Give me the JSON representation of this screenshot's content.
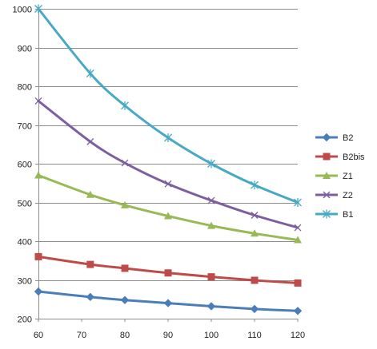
{
  "chart_data": {
    "type": "line",
    "title": "",
    "xlabel": "",
    "ylabel": "",
    "x": [
      60,
      72,
      80,
      90,
      100,
      110,
      120
    ],
    "xlim": [
      60,
      120
    ],
    "x_ticks": [
      60,
      70,
      80,
      90,
      100,
      110,
      120
    ],
    "ylim": [
      200,
      1000
    ],
    "y_ticks": [
      200,
      300,
      400,
      500,
      600,
      700,
      800,
      900,
      1000
    ],
    "grid": "horizontal",
    "legend_position": "right",
    "smooth": true,
    "series": [
      {
        "name": "B2",
        "color": "#4a7ebb",
        "marker": "diamond",
        "values": [
          270,
          256,
          248,
          240,
          232,
          225,
          220
        ]
      },
      {
        "name": "B2bis",
        "color": "#be4b48",
        "marker": "square",
        "values": [
          360,
          340,
          330,
          318,
          308,
          299,
          292
        ]
      },
      {
        "name": "Z1",
        "color": "#98b954",
        "marker": "triangle",
        "values": [
          570,
          520,
          493,
          465,
          440,
          420,
          403
        ]
      },
      {
        "name": "Z2",
        "color": "#7d5fa0",
        "marker": "x",
        "values": [
          762,
          657,
          602,
          548,
          505,
          467,
          435
        ]
      },
      {
        "name": "B1",
        "color": "#46aac5",
        "marker": "star",
        "values": [
          1000,
          833,
          750,
          667,
          600,
          545,
          500
        ]
      }
    ]
  }
}
